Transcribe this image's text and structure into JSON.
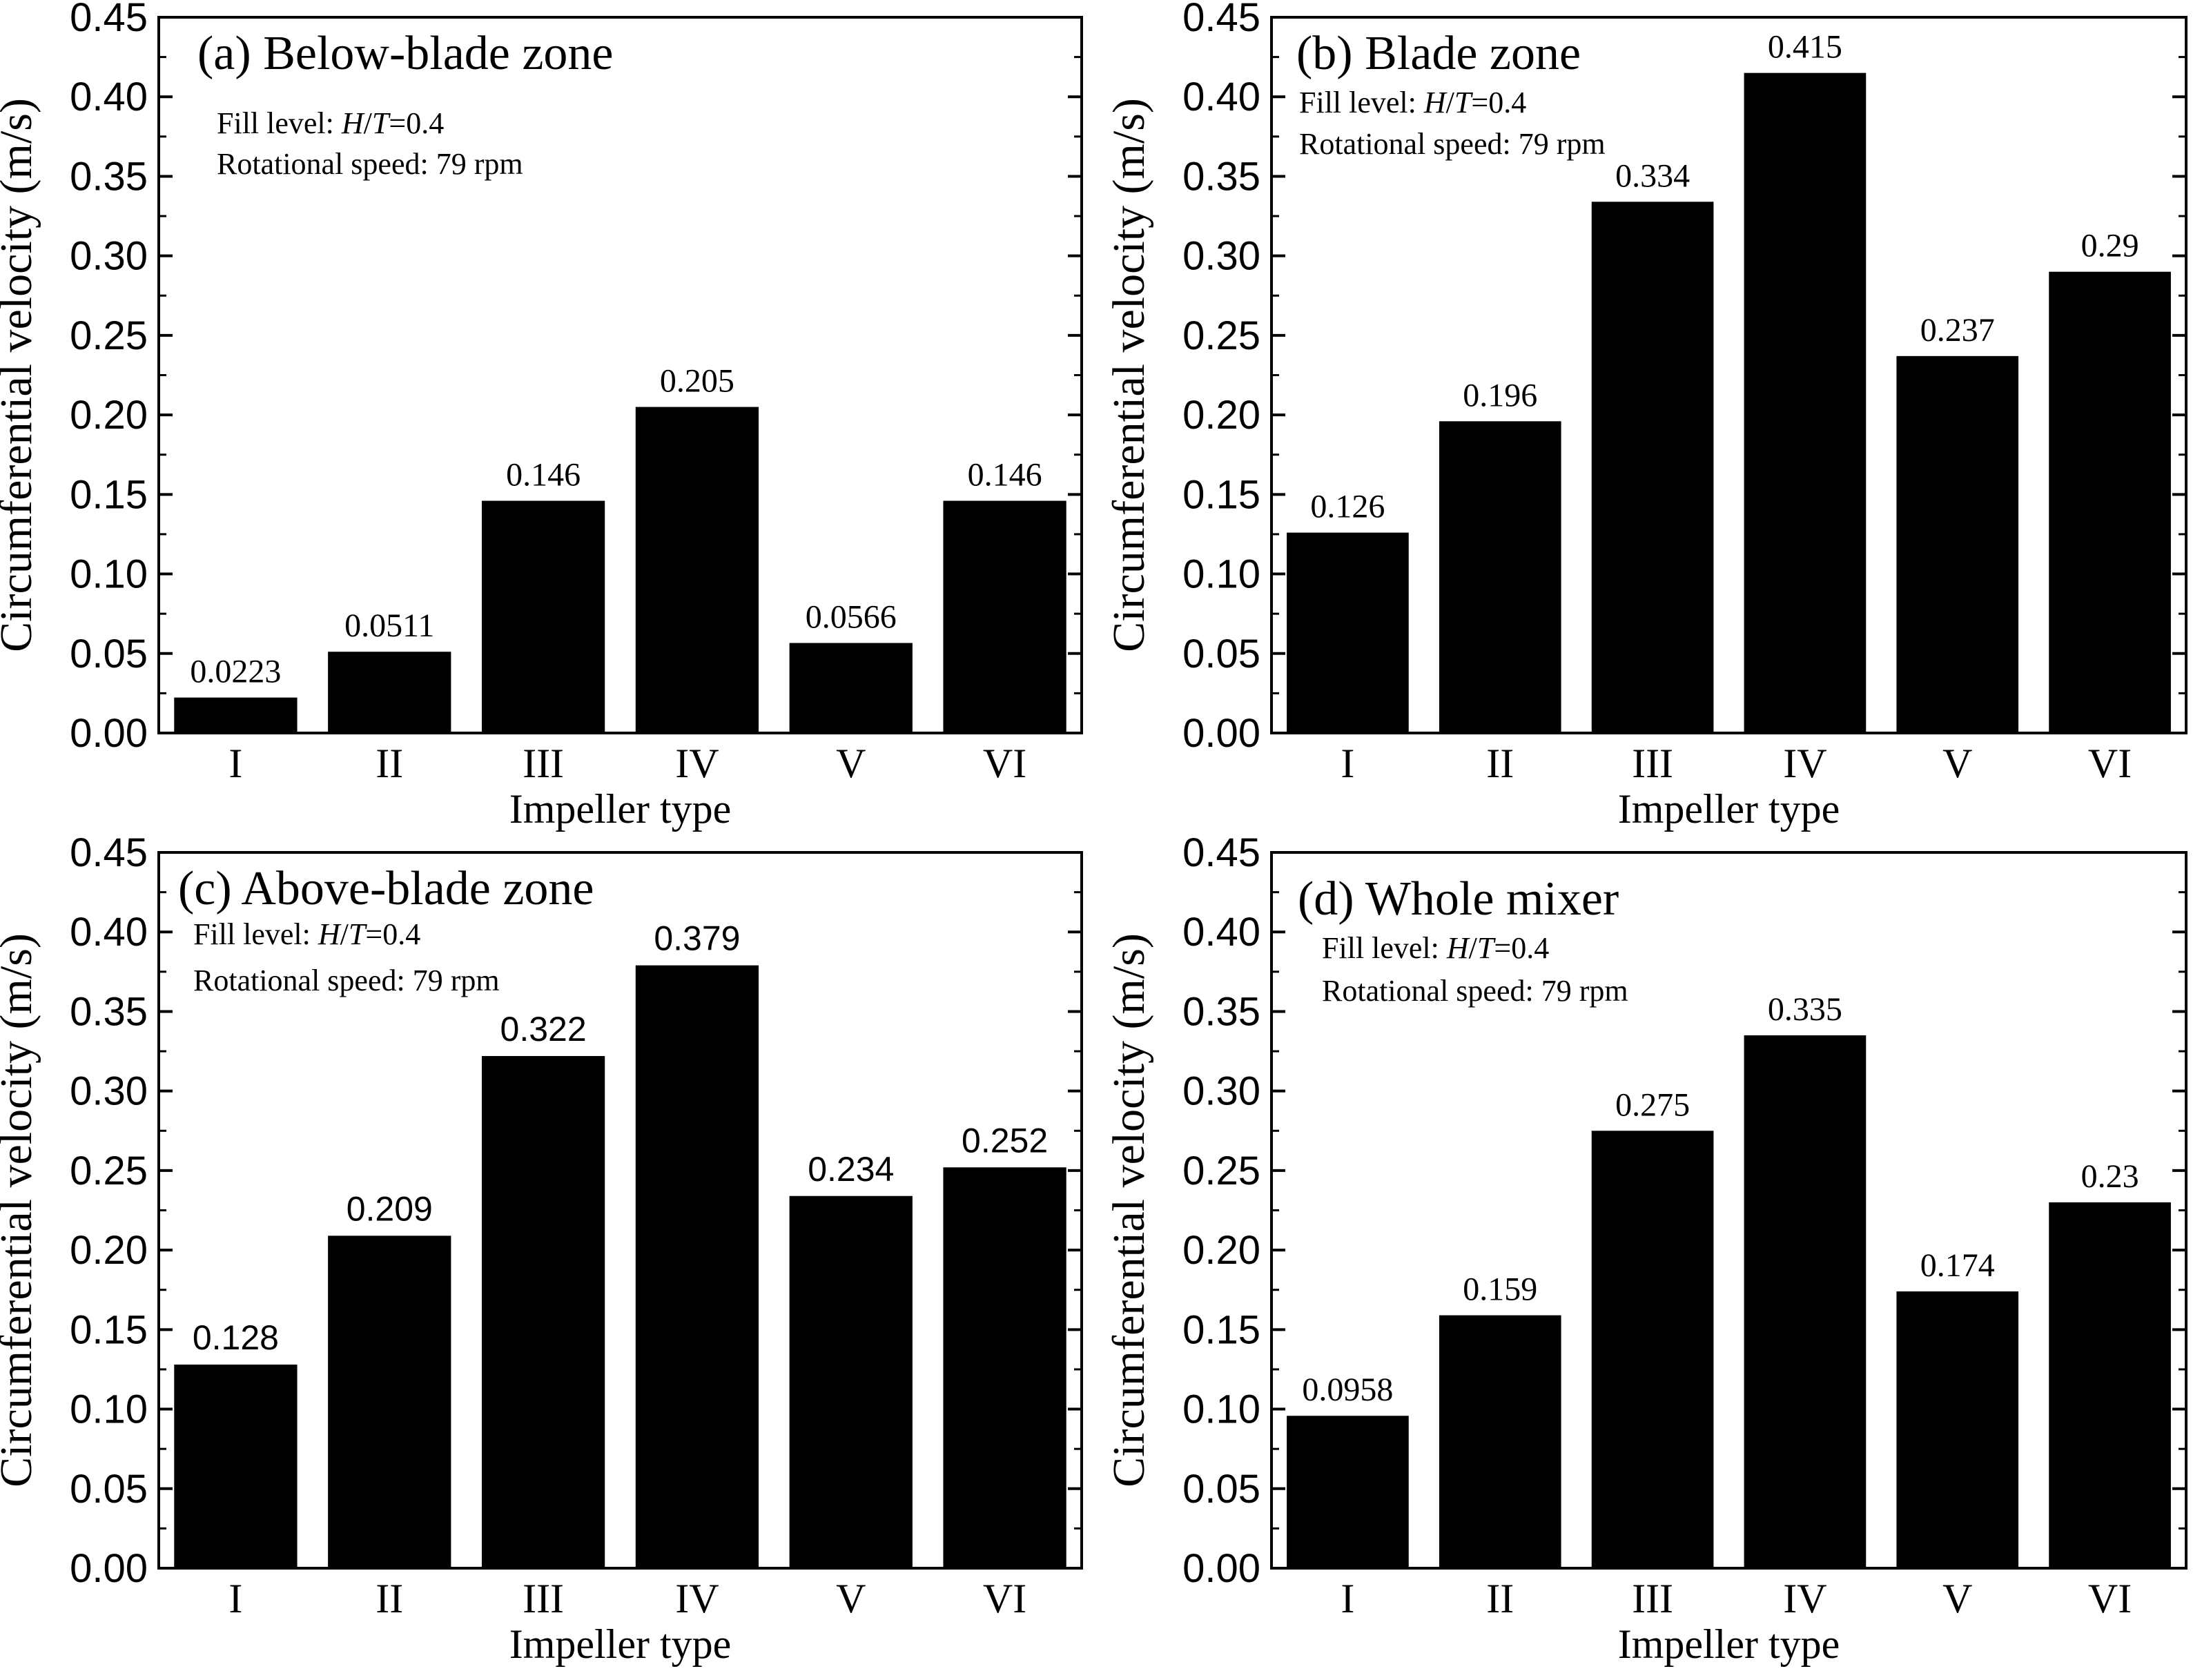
{
  "figure": {
    "background": "#ffffff",
    "ink": "#000000"
  },
  "chart_data": [
    {
      "type": "bar",
      "title": "(a) Below-blade zone",
      "notes": [
        {
          "prefix": "Fill level: ",
          "italic1": "H",
          "slash": "/",
          "italic2": "T",
          "suffix": "=0.4"
        },
        {
          "text": "Rotational speed: 79 rpm"
        }
      ],
      "categories": [
        "I",
        "II",
        "III",
        "IV",
        "V",
        "VI"
      ],
      "values": [
        0.0223,
        0.0511,
        0.146,
        0.205,
        0.0566,
        0.146
      ],
      "value_labels": [
        "0.0223",
        "0.0511",
        "0.146",
        "0.205",
        "0.0566",
        "0.146"
      ],
      "label_font": "serif",
      "xlabel": "Impeller type",
      "ylabel": "Circumferential velocity (m/s)",
      "ylim": [
        0,
        0.45
      ],
      "yticks": [
        "0.00",
        "0.05",
        "0.10",
        "0.15",
        "0.20",
        "0.25",
        "0.30",
        "0.35",
        "0.40",
        "0.45"
      ],
      "bar_color": "#000000",
      "grid": false
    },
    {
      "type": "bar",
      "title": "(b) Blade zone",
      "notes": [
        {
          "prefix": "Fill level: ",
          "italic1": "H",
          "slash": "/",
          "italic2": "T",
          "suffix": "=0.4"
        },
        {
          "text": "Rotational speed: 79 rpm"
        }
      ],
      "categories": [
        "I",
        "II",
        "III",
        "IV",
        "V",
        "VI"
      ],
      "values": [
        0.126,
        0.196,
        0.334,
        0.415,
        0.237,
        0.29
      ],
      "value_labels": [
        "0.126",
        "0.196",
        "0.334",
        "0.415",
        "0.237",
        "0.29"
      ],
      "label_font": "serif",
      "xlabel": "Impeller type",
      "ylabel": "Circumferential velocity (m/s)",
      "ylim": [
        0,
        0.45
      ],
      "yticks": [
        "0.00",
        "0.05",
        "0.10",
        "0.15",
        "0.20",
        "0.25",
        "0.30",
        "0.35",
        "0.40",
        "0.45"
      ],
      "bar_color": "#000000",
      "grid": false
    },
    {
      "type": "bar",
      "title": "(c) Above-blade zone",
      "notes": [
        {
          "prefix": "Fill level: ",
          "italic1": "H",
          "slash": "/",
          "italic2": "T",
          "suffix": "=0.4"
        },
        {
          "text": "Rotational speed: 79 rpm"
        }
      ],
      "categories": [
        "I",
        "II",
        "III",
        "IV",
        "V",
        "VI"
      ],
      "values": [
        0.128,
        0.209,
        0.322,
        0.379,
        0.234,
        0.252
      ],
      "value_labels": [
        "0.128",
        "0.209",
        "0.322",
        "0.379",
        "0.234",
        "0.252"
      ],
      "label_font": "sans",
      "xlabel": "Impeller type",
      "ylabel": "Circumferential velocity (m/s)",
      "ylim": [
        0,
        0.45
      ],
      "yticks": [
        "0.00",
        "0.05",
        "0.10",
        "0.15",
        "0.20",
        "0.25",
        "0.30",
        "0.35",
        "0.40",
        "0.45"
      ],
      "bar_color": "#000000",
      "grid": false
    },
    {
      "type": "bar",
      "title": "(d) Whole mixer",
      "notes": [
        {
          "prefix": "Fill level: ",
          "italic1": "H",
          "slash": "/",
          "italic2": "T",
          "suffix": "=0.4"
        },
        {
          "text": "Rotational speed: 79 rpm"
        }
      ],
      "categories": [
        "I",
        "II",
        "III",
        "IV",
        "V",
        "VI"
      ],
      "values": [
        0.0958,
        0.159,
        0.275,
        0.335,
        0.174,
        0.23
      ],
      "value_labels": [
        "0.0958",
        "0.159",
        "0.275",
        "0.335",
        "0.174",
        "0.23"
      ],
      "label_font": "serif",
      "xlabel": "Impeller type",
      "ylabel": "Circumferential velocity (m/s)",
      "ylim": [
        0,
        0.45
      ],
      "yticks": [
        "0.00",
        "0.05",
        "0.10",
        "0.15",
        "0.20",
        "0.25",
        "0.30",
        "0.35",
        "0.40",
        "0.45"
      ],
      "bar_color": "#000000",
      "grid": false
    }
  ]
}
